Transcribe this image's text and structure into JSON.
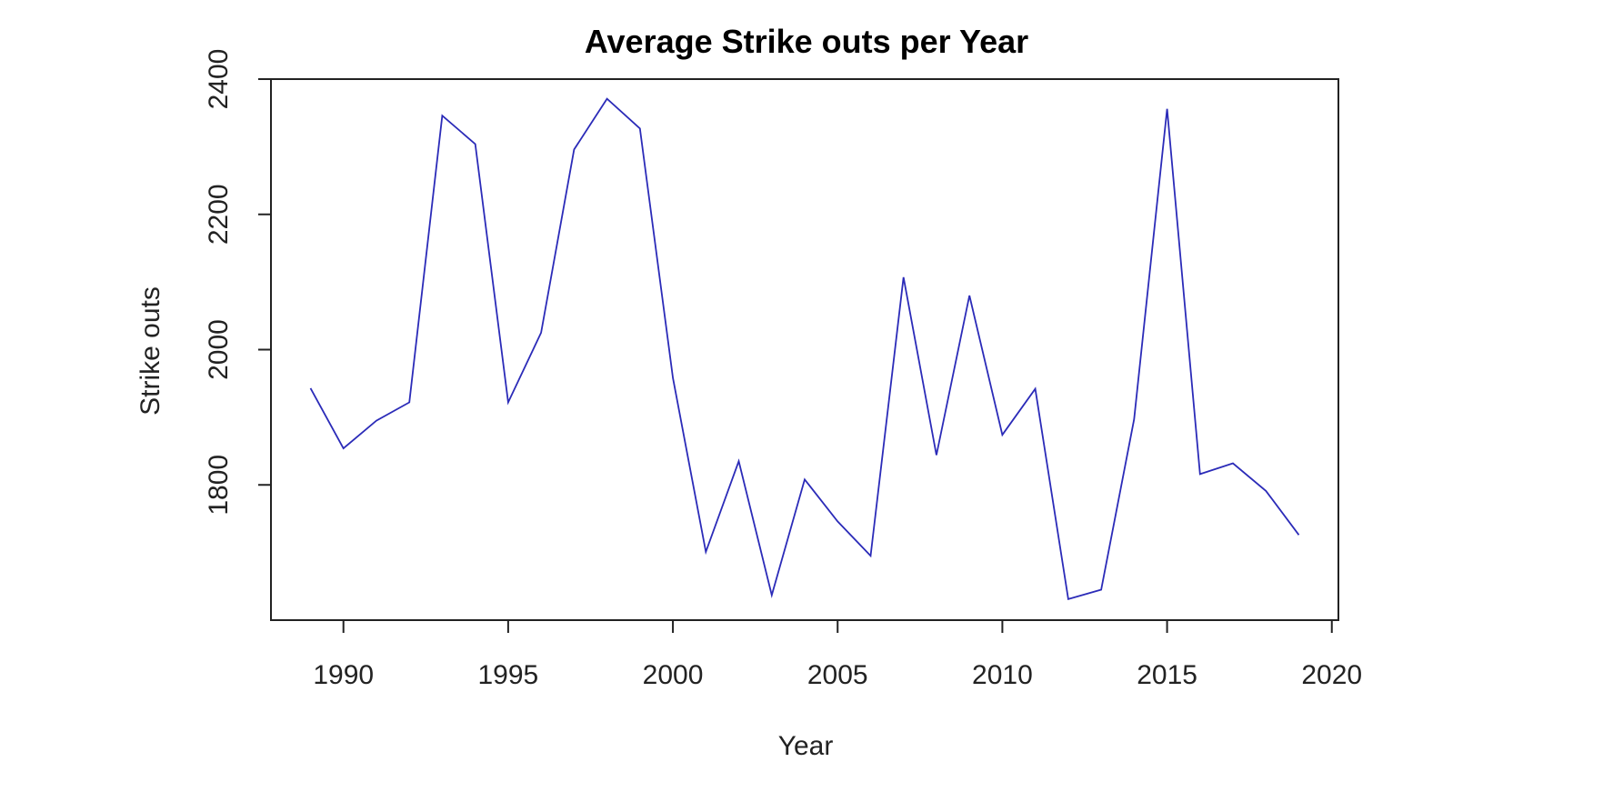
{
  "chart_data": {
    "type": "line",
    "title": "Average Strike outs per Year",
    "xlabel": "Year",
    "ylabel": "Strike outs",
    "x": [
      1989,
      1990,
      1991,
      1992,
      1993,
      1994,
      1995,
      1996,
      1997,
      1998,
      1999,
      2000,
      2001,
      2002,
      2003,
      2004,
      2005,
      2006,
      2007,
      2008,
      2009,
      2010,
      2011,
      2012,
      2013,
      2014,
      2015,
      2016,
      2017,
      2018,
      2019
    ],
    "series": [
      {
        "values": [
          1943,
          1854,
          1895,
          1922,
          2346,
          2304,
          1922,
          2025,
          2296,
          2371,
          2327,
          1958,
          1701,
          1835,
          1637,
          1808,
          1746,
          1695,
          2107,
          1844,
          2080,
          1874,
          1942,
          1631,
          1645,
          1897,
          2356,
          1816,
          1832,
          1791,
          1726
        ],
        "color": "#2b2bb8"
      }
    ],
    "xlim": [
      1987.8,
      2020.2
    ],
    "ylim": [
      1600,
      2400
    ],
    "xticks": [
      1990,
      1995,
      2000,
      2005,
      2010,
      2015,
      2020
    ],
    "yticks": [
      1800,
      2000,
      2200,
      2400
    ],
    "xtick_labels": [
      "1990",
      "1995",
      "2000",
      "2005",
      "2010",
      "2015",
      "2020"
    ],
    "ytick_labels": [
      "1800",
      "2000",
      "2200",
      "2400"
    ],
    "grid": false,
    "legend": "none"
  }
}
